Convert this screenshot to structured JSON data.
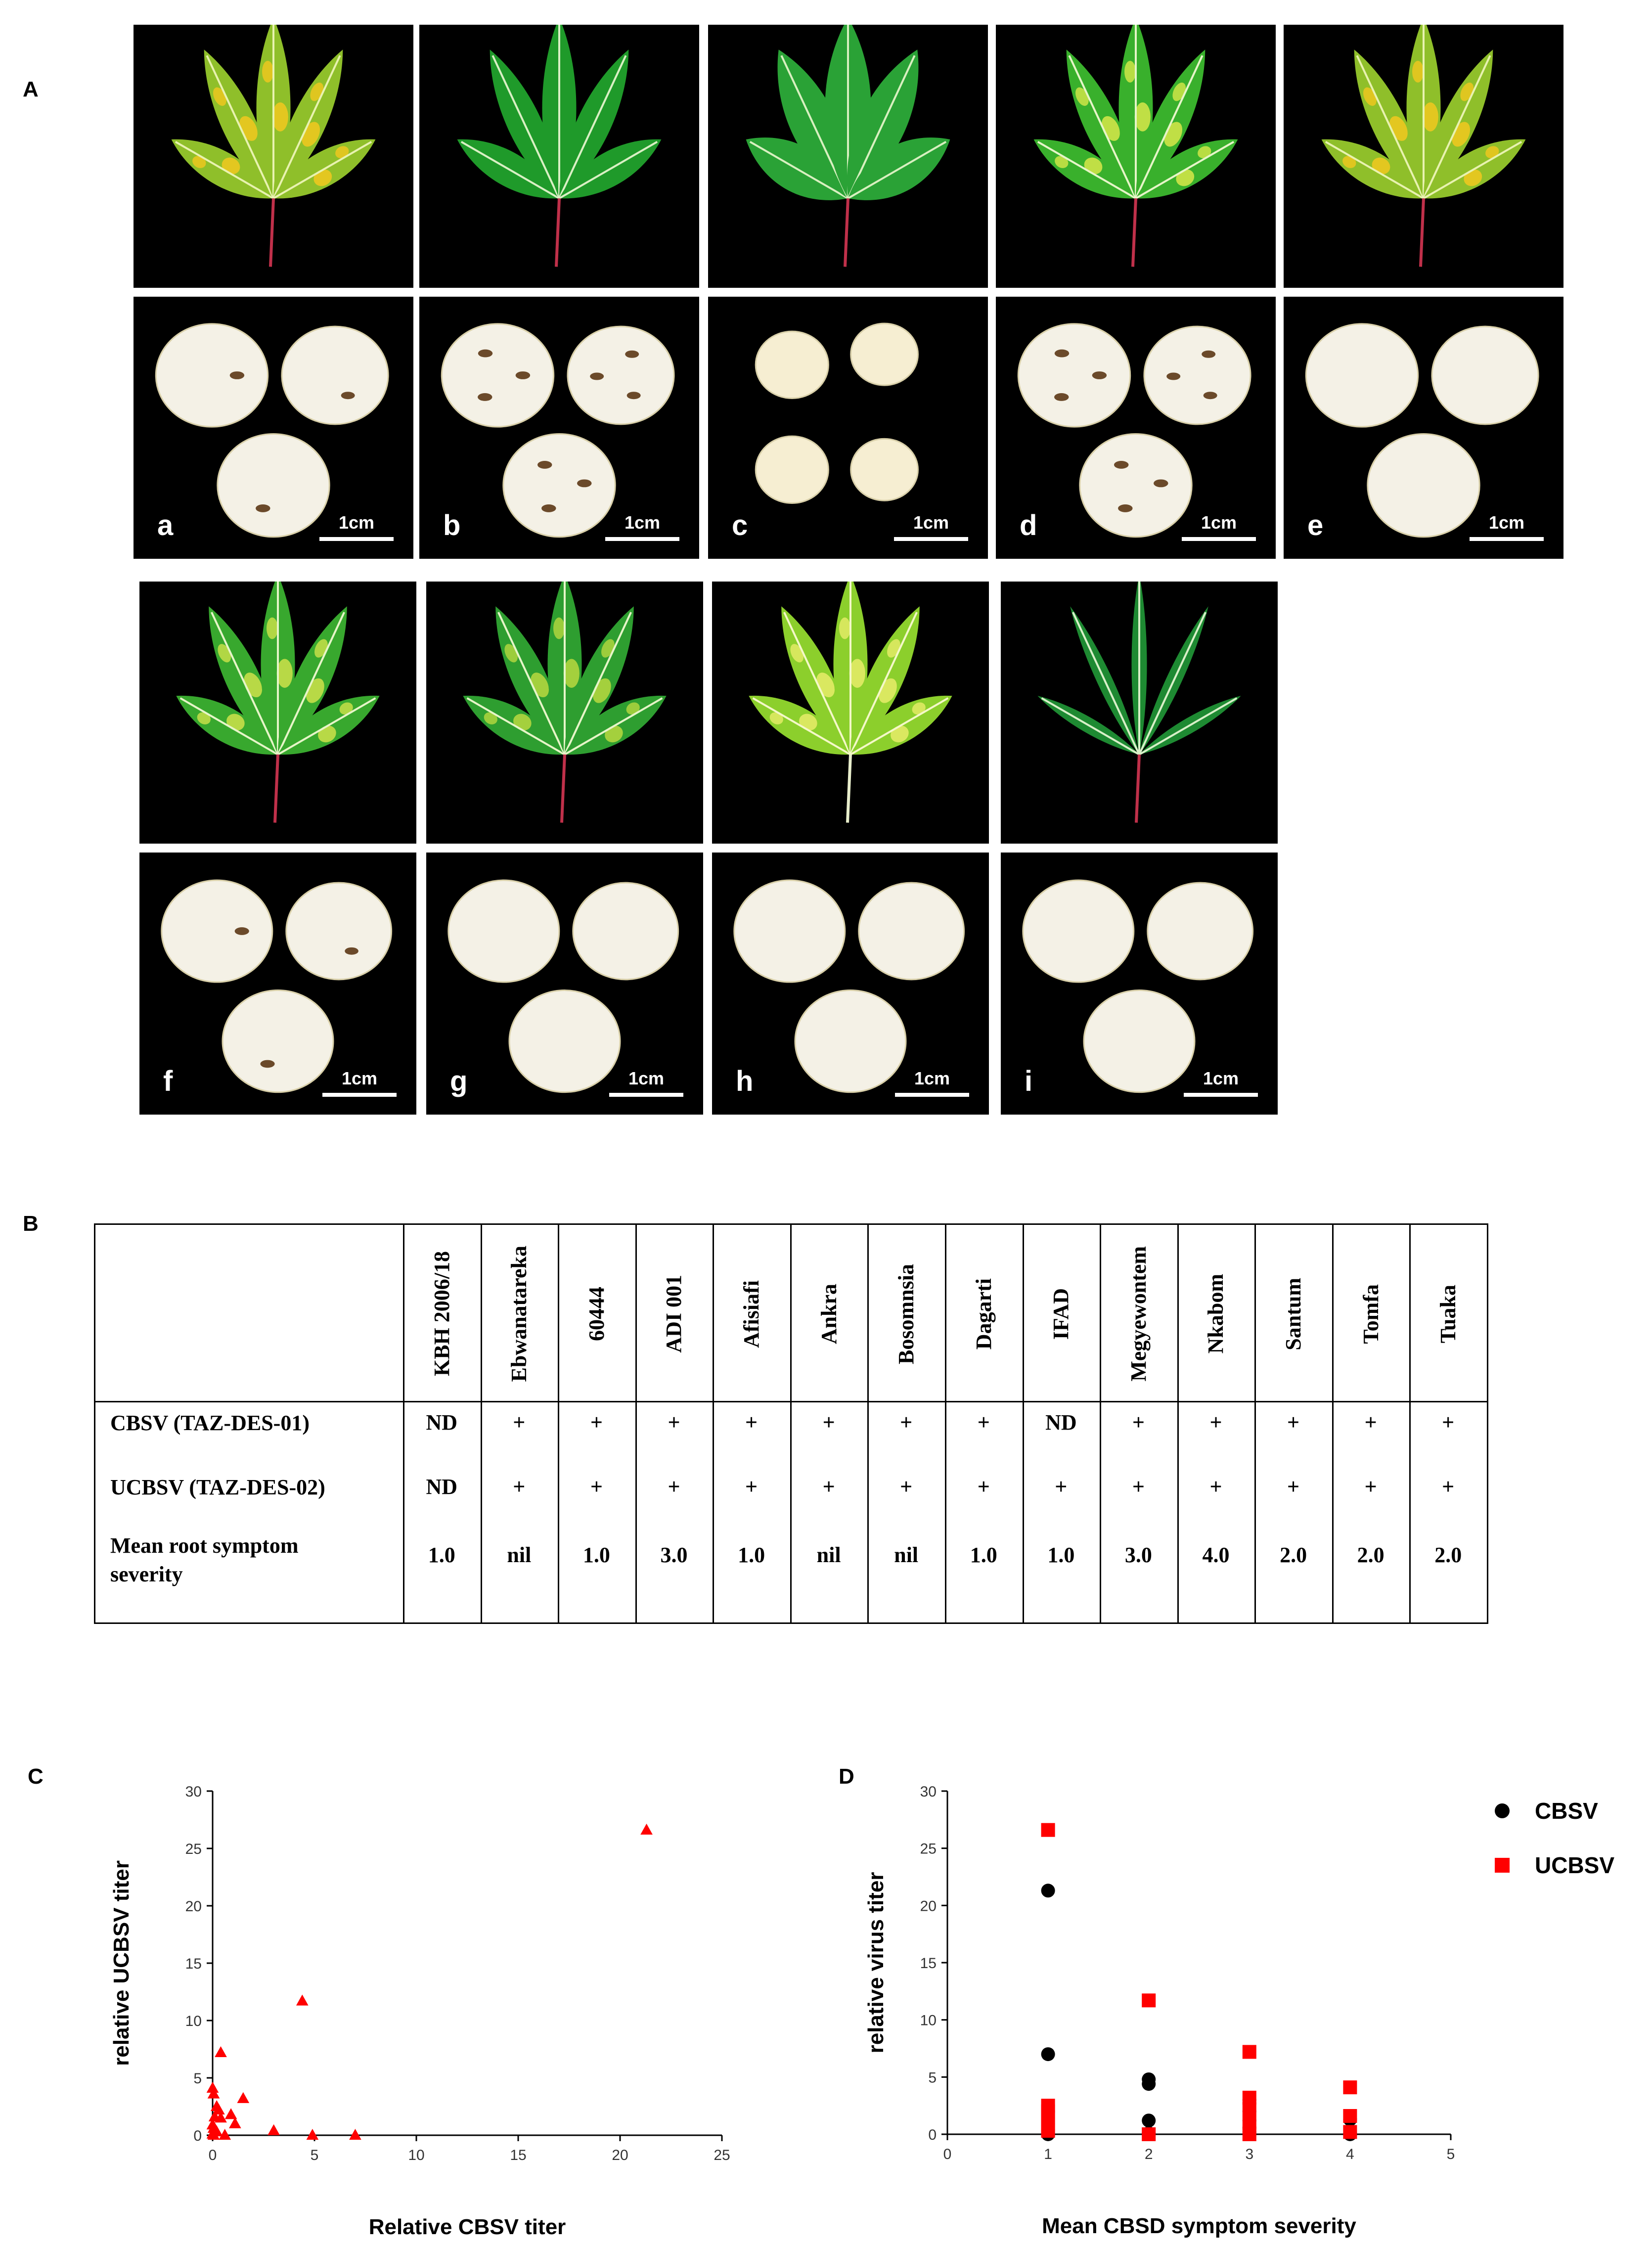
{
  "panel_labels": {
    "a": "A",
    "b": "B",
    "c": "C",
    "d": "D"
  },
  "photos": {
    "scale_text": "1cm",
    "tiles": [
      {
        "letter": "a",
        "leaf_style": "mottled-yellow",
        "root_style": "necrotic-light",
        "root_count": 3
      },
      {
        "letter": "b",
        "leaf_style": "green",
        "root_style": "necrotic-heavy",
        "root_count": 3
      },
      {
        "letter": "c",
        "leaf_style": "green-broad",
        "root_style": "small-clean",
        "root_count": 4
      },
      {
        "letter": "d",
        "leaf_style": "light-green",
        "root_style": "necrotic-heavy",
        "root_count": 3
      },
      {
        "letter": "e",
        "leaf_style": "mottled-yellow",
        "root_style": "clean",
        "root_count": 3
      },
      {
        "letter": "f",
        "leaf_style": "mottled-light",
        "root_style": "necrotic-light",
        "root_count": 3
      },
      {
        "letter": "g",
        "leaf_style": "green-light",
        "root_style": "clean",
        "root_count": 3
      },
      {
        "letter": "h",
        "leaf_style": "chlorotic",
        "root_style": "clean",
        "root_count": 3
      },
      {
        "letter": "i",
        "leaf_style": "narrow-green",
        "root_style": "clean",
        "root_count": 3
      }
    ]
  },
  "table": {
    "columns": [
      "KBH 2006/18",
      "Ebwanatareka",
      "60444",
      "ADI 001",
      "Afisiafi",
      "Ankra",
      "Bosomnsia",
      "Dagarti",
      "IFAD",
      "Megyewontem",
      "Nkabom",
      "Santum",
      "Tomfa",
      "Tuaka"
    ],
    "rows": [
      {
        "label": "CBSV (TAZ-DES-01)",
        "label2": "",
        "values": [
          "ND",
          "+",
          "+",
          "+",
          "+",
          "+",
          "+",
          "+",
          "ND",
          "+",
          "+",
          "+",
          "+",
          "+"
        ]
      },
      {
        "label": "UCBSV (TAZ-DES-02)",
        "label2": "",
        "values": [
          "ND",
          "+",
          "+",
          "+",
          "+",
          "+",
          "+",
          "+",
          "+",
          "+",
          "+",
          "+",
          "+",
          "+"
        ]
      },
      {
        "label": "Mean root symptom",
        "label2": "severity",
        "values": [
          "1.0",
          "nil",
          "1.0",
          "3.0",
          "1.0",
          "nil",
          "nil",
          "1.0",
          "1.0",
          "3.0",
          "4.0",
          "2.0",
          "2.0",
          "2.0"
        ]
      }
    ]
  },
  "chart_data": [
    {
      "type": "scatter",
      "panel": "C",
      "xlabel": "Relative CBSV titer",
      "ylabel": "relative UCBSV titer",
      "xlim": [
        0,
        25
      ],
      "ylim": [
        0,
        30
      ],
      "xticks": [
        0,
        5,
        10,
        15,
        20,
        25
      ],
      "yticks": [
        0,
        5,
        10,
        15,
        20,
        25,
        30
      ],
      "marker": "triangle",
      "color": "#ff0000",
      "series": [
        {
          "x": [
            21.3,
            4.4,
            0.4,
            0.0,
            0.05,
            0.2,
            0.3,
            1.5,
            0.1,
            0.4,
            0.9,
            1.1,
            0.0,
            0.05,
            0.2,
            0.6,
            3.0,
            4.9,
            7.0,
            0.05,
            0.0
          ],
          "y": [
            26.6,
            11.7,
            7.2,
            4.1,
            3.6,
            2.5,
            2.2,
            3.2,
            1.6,
            1.5,
            1.8,
            1.0,
            0.9,
            0.6,
            0.3,
            0.0,
            0.4,
            0.0,
            0.0,
            0.0,
            0.1
          ]
        }
      ]
    },
    {
      "type": "scatter",
      "panel": "D",
      "xlabel": "Mean CBSD symptom severity",
      "ylabel": "relative virus titer",
      "xlim": [
        0,
        5
      ],
      "ylim": [
        0,
        30
      ],
      "xticks": [
        0,
        1,
        2,
        3,
        4,
        5
      ],
      "yticks": [
        0,
        5,
        10,
        15,
        20,
        25,
        30
      ],
      "legend_position": "top-right",
      "series": [
        {
          "name": "CBSV",
          "marker": "circle",
          "color": "#000000",
          "x": [
            1,
            1,
            1,
            1,
            1,
            2,
            2,
            2,
            2,
            2,
            3,
            3,
            3,
            3,
            3,
            3,
            4,
            4,
            4
          ],
          "y": [
            21.3,
            7.0,
            0.4,
            0.1,
            0.0,
            4.8,
            4.4,
            1.2,
            0.1,
            0.0,
            3.0,
            2.0,
            1.2,
            0.6,
            0.2,
            0.0,
            1.3,
            0.1,
            0.0
          ]
        },
        {
          "name": "UCBSV",
          "marker": "square",
          "color": "#ff0000",
          "x": [
            1,
            1,
            1,
            1,
            1,
            1,
            2,
            2,
            3,
            3,
            3,
            3,
            3,
            4,
            4,
            4
          ],
          "y": [
            26.6,
            2.5,
            2.0,
            1.5,
            0.8,
            0.3,
            11.7,
            0.0,
            7.2,
            3.2,
            2.2,
            1.0,
            0.0,
            4.1,
            1.6,
            0.2
          ]
        }
      ]
    }
  ]
}
